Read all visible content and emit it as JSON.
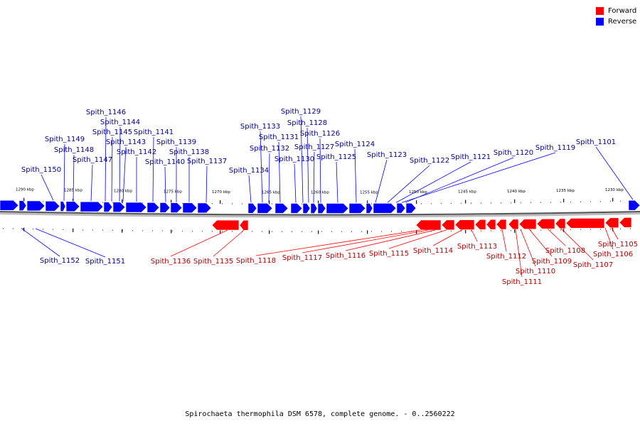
{
  "legend": {
    "forward_label": "Forward",
    "reverse_label": "Reverse",
    "forward_color": "#ff0000",
    "reverse_color": "#0000ff"
  },
  "caption": "Spirochaeta thermophila DSM 6578, complete genome. - 0..2560222",
  "ticks": [
    "1290 kbp",
    "1285 kbp",
    "1280 kbp",
    "1275 kbp",
    "1270 kbp",
    "1265 kbp",
    "1260 kbp",
    "1255 kbp",
    "1250 kbp",
    "1245 kbp",
    "1240 kbp",
    "1235 kbp",
    "1230 kbp"
  ],
  "reverse_genes": [
    "Spith_1152",
    "Spith_1151",
    "Spith_1150",
    "Spith_1149",
    "Spith_1148",
    "Spith_1147",
    "Spith_1146",
    "Spith_1145",
    "Spith_1144",
    "Spith_1143",
    "Spith_1142",
    "Spith_1141",
    "Spith_1140",
    "Spith_1139",
    "Spith_1138",
    "Spith_1137",
    "Spith_1134",
    "Spith_1133",
    "Spith_1132",
    "Spith_1131",
    "Spith_1130",
    "Spith_1129",
    "Spith_1128",
    "Spith_1127",
    "Spith_1126",
    "Spith_1125",
    "Spith_1124",
    "Spith_1123",
    "Spith_1122",
    "Spith_1121",
    "Spith_1120",
    "Spith_1119",
    "Spith_1101"
  ],
  "forward_genes": [
    "Spith_1136",
    "Spith_1135",
    "Spith_1118",
    "Spith_1117",
    "Spith_1116",
    "Spith_1115",
    "Spith_1114",
    "Spith_1113",
    "Spith_1112",
    "Spith_1111",
    "Spith_1110",
    "Spith_1109",
    "Spith_1108",
    "Spith_1107",
    "Spith_1106",
    "Spith_1105"
  ]
}
